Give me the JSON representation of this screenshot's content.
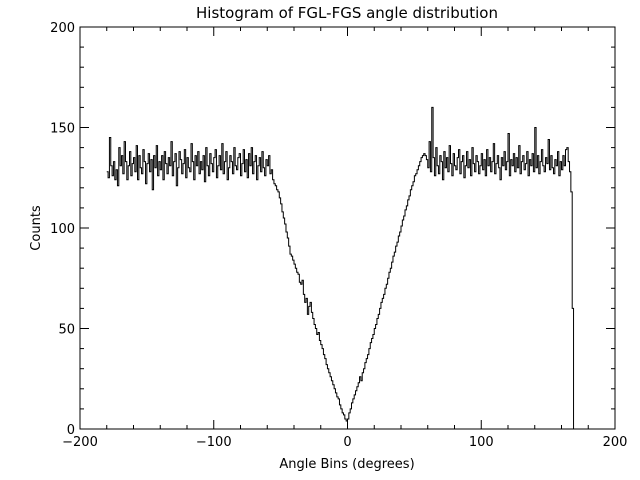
{
  "chart_data": {
    "type": "line",
    "title": "Histogram of FGL-FGS angle distribution",
    "xlabel": "Angle Bins (degrees)",
    "ylabel": "Counts",
    "xlim": [
      -200,
      200
    ],
    "ylim": [
      0,
      200
    ],
    "grid": false,
    "legend": "none",
    "x_ticks": [
      -200,
      -100,
      0,
      100,
      200
    ],
    "x_tick_labels": [
      "−200",
      "−100",
      "0",
      "100",
      "200"
    ],
    "y_ticks": [
      0,
      50,
      100,
      150,
      200
    ],
    "y_tick_labels": [
      "0",
      "50",
      "100",
      "150",
      "200"
    ],
    "series": [
      {
        "name": "Counts",
        "style": "steps",
        "color": "#000000",
        "x_start": -179.5,
        "x_step": 1,
        "values": [
          128,
          125,
          145,
          131,
          126,
          133,
          124,
          129,
          121,
          140,
          131,
          136,
          127,
          143,
          133,
          124,
          131,
          138,
          126,
          132,
          135,
          128,
          141,
          124,
          136,
          130,
          127,
          139,
          133,
          122,
          132,
          137,
          128,
          134,
          119,
          136,
          130,
          141,
          126,
          133,
          129,
          136,
          124,
          138,
          132,
          127,
          135,
          131,
          143,
          126,
          133,
          137,
          121,
          130,
          138,
          134,
          127,
          132,
          139,
          125,
          135,
          130,
          128,
          142,
          133,
          124,
          136,
          131,
          138,
          127,
          133,
          129,
          136,
          123,
          140,
          131,
          126,
          137,
          132,
          128,
          135,
          139,
          125,
          131,
          136,
          129,
          142,
          127,
          133,
          138,
          124,
          130,
          136,
          133,
          127,
          140,
          131,
          129,
          135,
          137,
          126,
          132,
          139,
          128,
          134,
          125,
          137,
          131,
          140,
          127,
          133,
          136,
          124,
          131,
          135,
          128,
          138,
          130,
          126,
          134,
          131,
          136,
          127,
          129,
          124,
          122,
          121,
          119,
          118,
          115,
          112,
          108,
          105,
          102,
          98,
          95,
          91,
          87,
          86,
          84,
          82,
          80,
          78,
          77,
          73,
          72,
          74,
          67,
          63,
          65,
          57,
          61,
          63,
          58,
          55,
          52,
          50,
          47,
          48,
          44,
          42,
          40,
          37,
          35,
          32,
          30,
          28,
          26,
          24,
          22,
          20,
          18,
          16,
          15,
          12,
          10,
          8,
          7,
          5,
          4,
          5,
          8,
          10,
          13,
          15,
          17,
          19,
          21,
          23,
          26,
          24,
          28,
          30,
          33,
          35,
          37,
          40,
          43,
          45,
          47,
          50,
          52,
          55,
          57,
          60,
          63,
          65,
          67,
          70,
          72,
          75,
          78,
          80,
          83,
          86,
          88,
          91,
          93,
          96,
          98,
          101,
          104,
          106,
          109,
          111,
          114,
          116,
          119,
          121,
          123,
          126,
          127,
          129,
          131,
          133,
          135,
          136,
          137,
          136,
          134,
          130,
          143,
          128,
          160,
          135,
          126,
          140,
          131,
          127,
          136,
          133,
          124,
          138,
          130,
          135,
          128,
          141,
          132,
          126,
          137,
          131,
          129,
          135,
          139,
          127,
          133,
          136,
          125,
          131,
          138,
          130,
          134,
          126,
          140,
          132,
          128,
          136,
          133,
          127,
          131,
          137,
          129,
          134,
          126,
          139,
          131,
          135,
          128,
          133,
          142,
          127,
          132,
          136,
          130,
          124,
          135,
          131,
          138,
          129,
          133,
          147,
          126,
          134,
          131,
          137,
          128,
          135,
          130,
          141,
          127,
          133,
          136,
          129,
          132,
          138,
          126,
          134,
          131,
          137,
          128,
          150,
          130,
          136,
          127,
          133,
          139,
          131,
          128,
          135,
          132,
          144,
          129,
          136,
          130,
          127,
          134,
          131,
          138,
          126,
          133,
          129,
          136,
          131,
          139,
          140,
          133,
          128,
          118,
          60,
          0
        ]
      }
    ]
  }
}
